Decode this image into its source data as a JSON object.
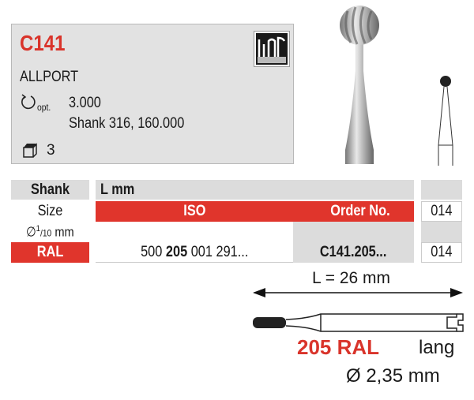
{
  "product": {
    "code": "C141",
    "name": "ALLPORT",
    "speed_label": "opt.",
    "speed_value": "3.000",
    "speed_shank": "Shank 316, 160.000",
    "pack_qty": "3",
    "icons": [
      "rotation-icon",
      "package-icon",
      "application-logo"
    ]
  },
  "table": {
    "shank_header": "Shank",
    "length_header": "L mm",
    "size_label": "Size",
    "diameter_label_prefix": "∅",
    "diameter_label_sup": "1",
    "diameter_label_sub": "/10",
    "diameter_label_unit": " mm",
    "iso_header": "ISO",
    "order_header": "Order No.",
    "row": {
      "shank": "RAL",
      "iso_prefix": "500 ",
      "iso_bold": "205",
      "iso_suffix": " 001 291...",
      "order_no": "C141.205..."
    },
    "size_values": [
      "014",
      "014"
    ]
  },
  "diagram": {
    "length": "L = 26 mm",
    "shank_code": "205 RAL",
    "shank_type": "lang",
    "shank_diameter": "Ø 2,35 mm"
  },
  "colors": {
    "accent": "#e0352c",
    "panel": "#e2e2e2"
  }
}
